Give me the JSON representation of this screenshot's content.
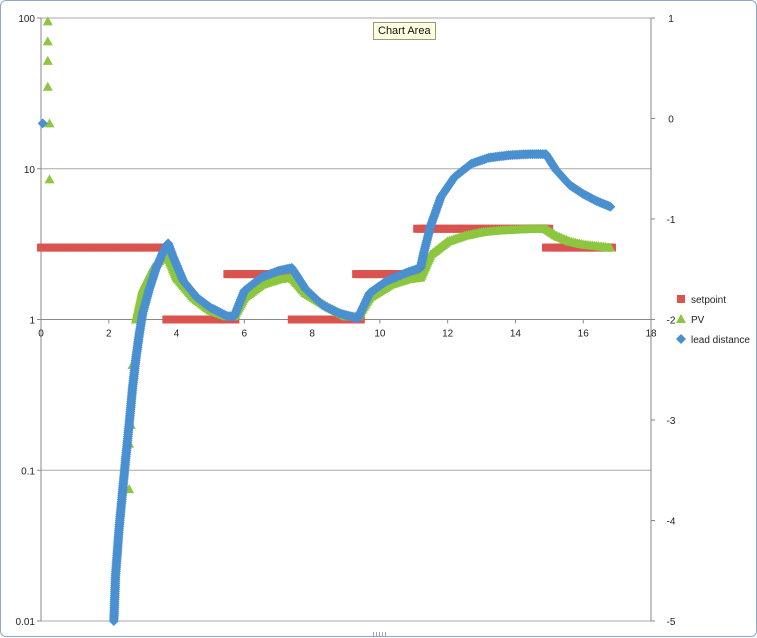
{
  "tooltip": "Chart Area",
  "chart_data": {
    "type": "scatter",
    "x": {
      "range": [
        0,
        18
      ],
      "ticks": [
        0,
        2,
        4,
        6,
        8,
        10,
        12,
        14,
        16,
        18
      ]
    },
    "y_left": {
      "scale": "log",
      "range": [
        0.01,
        100
      ],
      "ticks": [
        0.01,
        0.1,
        1,
        10,
        100
      ],
      "tick_labels": [
        "0.01",
        "0.1",
        "1",
        "10",
        "100"
      ],
      "grid": true
    },
    "y_right": {
      "range": [
        -5,
        1
      ],
      "ticks": [
        -5,
        -4,
        -3,
        -2,
        -1,
        0,
        1
      ],
      "tick_labels": [
        "-5",
        "-4",
        "-3",
        "-2",
        "-1",
        "0",
        "1"
      ]
    },
    "legend_position": "right",
    "series": [
      {
        "name": "setpoint",
        "marker": "square",
        "color": "#d9534f",
        "segments": [
          {
            "x": [
              0,
              3.7
            ],
            "y": 3
          },
          {
            "x": 3.7,
            "y2": 1
          },
          {
            "x": [
              3.7,
              5.8
            ],
            "y": 1
          },
          {
            "x": [
              5.5,
              7.5
            ],
            "y": 2
          },
          {
            "x": [
              7.4,
              9.5
            ],
            "y": 1
          },
          {
            "x": [
              9.3,
              11.2
            ],
            "y": 2
          },
          {
            "x": [
              11.1,
              15.0
            ],
            "y": 4
          },
          {
            "x": [
              14.9,
              16.9
            ],
            "y": 3
          }
        ]
      },
      {
        "name": "PV",
        "marker": "triangle",
        "color": "#8dc63f",
        "points": [
          [
            0.2,
            95
          ],
          [
            0.2,
            70
          ],
          [
            0.2,
            52
          ],
          [
            0.2,
            35
          ],
          [
            0.25,
            20
          ],
          [
            0.25,
            8.5
          ],
          [
            2.6,
            0.075
          ],
          [
            2.6,
            0.15
          ],
          [
            2.65,
            0.2
          ],
          [
            2.7,
            0.5
          ],
          [
            2.8,
            1
          ],
          [
            3.0,
            1.6
          ],
          [
            3.3,
            2.2
          ],
          [
            3.6,
            2.6
          ],
          [
            3.75,
            2.6
          ],
          [
            4.0,
            1.9
          ],
          [
            4.5,
            1.4
          ],
          [
            5.0,
            1.15
          ],
          [
            5.5,
            1.05
          ],
          [
            5.7,
            1.05
          ],
          [
            6.0,
            1.4
          ],
          [
            6.5,
            1.7
          ],
          [
            7.0,
            1.85
          ],
          [
            7.4,
            1.9
          ],
          [
            7.8,
            1.5
          ],
          [
            8.5,
            1.2
          ],
          [
            9.0,
            1.05
          ],
          [
            9.35,
            1.05
          ],
          [
            9.7,
            1.4
          ],
          [
            10.3,
            1.7
          ],
          [
            10.8,
            1.85
          ],
          [
            11.2,
            1.9
          ],
          [
            11.5,
            2.7
          ],
          [
            12.0,
            3.3
          ],
          [
            12.5,
            3.6
          ],
          [
            13.0,
            3.8
          ],
          [
            13.5,
            3.9
          ],
          [
            14.0,
            3.95
          ],
          [
            14.5,
            4.0
          ],
          [
            14.9,
            4.0
          ],
          [
            15.2,
            3.6
          ],
          [
            15.6,
            3.3
          ],
          [
            16.0,
            3.15
          ],
          [
            16.5,
            3.05
          ],
          [
            16.8,
            3.0
          ]
        ]
      },
      {
        "name": "lead distance",
        "marker": "diamond",
        "color": "#4a90d0",
        "points": [
          [
            0.05,
            20
          ],
          [
            2.15,
            0.01
          ],
          [
            2.2,
            0.02
          ],
          [
            2.3,
            0.04
          ],
          [
            2.4,
            0.07
          ],
          [
            2.5,
            0.12
          ],
          [
            2.6,
            0.2
          ],
          [
            2.7,
            0.35
          ],
          [
            2.8,
            0.55
          ],
          [
            2.9,
            0.8
          ],
          [
            3.0,
            1.1
          ],
          [
            3.2,
            1.6
          ],
          [
            3.4,
            2.2
          ],
          [
            3.6,
            2.8
          ],
          [
            3.75,
            3.2
          ],
          [
            3.9,
            2.6
          ],
          [
            4.2,
            1.8
          ],
          [
            4.6,
            1.4
          ],
          [
            5.0,
            1.2
          ],
          [
            5.5,
            1.05
          ],
          [
            5.7,
            1.05
          ],
          [
            6.0,
            1.55
          ],
          [
            6.5,
            1.9
          ],
          [
            7.0,
            2.1
          ],
          [
            7.4,
            2.2
          ],
          [
            7.8,
            1.6
          ],
          [
            8.3,
            1.25
          ],
          [
            8.8,
            1.1
          ],
          [
            9.35,
            1.02
          ],
          [
            9.7,
            1.5
          ],
          [
            10.2,
            1.8
          ],
          [
            10.8,
            2.05
          ],
          [
            11.2,
            2.2
          ],
          [
            11.3,
            2.8
          ],
          [
            11.5,
            4.2
          ],
          [
            11.8,
            6.5
          ],
          [
            12.2,
            8.8
          ],
          [
            12.7,
            10.8
          ],
          [
            13.2,
            11.8
          ],
          [
            13.8,
            12.3
          ],
          [
            14.4,
            12.5
          ],
          [
            14.9,
            12.5
          ],
          [
            15.2,
            9.8
          ],
          [
            15.6,
            7.8
          ],
          [
            16.0,
            6.8
          ],
          [
            16.4,
            6.1
          ],
          [
            16.8,
            5.6
          ]
        ]
      }
    ]
  }
}
